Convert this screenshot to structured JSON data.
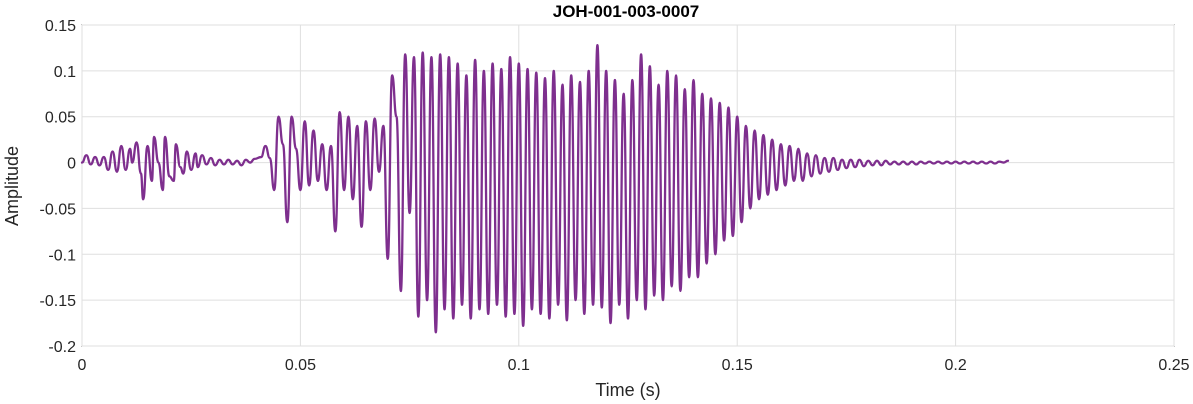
{
  "chart_data": {
    "type": "line",
    "title": "JOH-001-003-0007",
    "xlabel": "Time (s)",
    "ylabel": "Amplitude",
    "xlim": [
      0,
      0.25
    ],
    "ylim": [
      -0.2,
      0.15
    ],
    "xticks": [
      0,
      0.05,
      0.1,
      0.15,
      0.2,
      0.25
    ],
    "xtick_labels": [
      "0",
      "0.05",
      "0.1",
      "0.15",
      "0.2",
      "0.25"
    ],
    "yticks": [
      -0.2,
      -0.15,
      -0.1,
      -0.05,
      0,
      0.05,
      0.1,
      0.15
    ],
    "ytick_labels": [
      "-0.2",
      "-0.15",
      "-0.1",
      "-0.05",
      "0",
      "0.05",
      "0.1",
      "0.15"
    ],
    "grid": true,
    "series": [
      {
        "color": "#7e2f8e",
        "peaks": [
          [
            0.0,
            0.0
          ],
          [
            0.001,
            0.008
          ],
          [
            0.002,
            -0.002
          ],
          [
            0.003,
            0.006
          ],
          [
            0.004,
            -0.003
          ],
          [
            0.005,
            0.006
          ],
          [
            0.006,
            -0.008
          ],
          [
            0.007,
            0.012
          ],
          [
            0.008,
            -0.01
          ],
          [
            0.009,
            0.018
          ],
          [
            0.01,
            -0.008
          ],
          [
            0.011,
            0.015
          ],
          [
            0.0115,
            0.0
          ],
          [
            0.0125,
            0.022
          ],
          [
            0.0135,
            -0.012
          ],
          [
            0.014,
            -0.04
          ],
          [
            0.015,
            0.018
          ],
          [
            0.016,
            -0.02
          ],
          [
            0.0165,
            0.028
          ],
          [
            0.0175,
            0.0
          ],
          [
            0.0185,
            -0.03
          ],
          [
            0.019,
            0.028
          ],
          [
            0.02,
            -0.015
          ],
          [
            0.021,
            -0.02
          ],
          [
            0.0215,
            0.02
          ],
          [
            0.0225,
            -0.005
          ],
          [
            0.0232,
            -0.012
          ],
          [
            0.024,
            0.012
          ],
          [
            0.025,
            -0.008
          ],
          [
            0.026,
            0.01
          ],
          [
            0.0265,
            -0.005
          ],
          [
            0.0275,
            0.008
          ],
          [
            0.0285,
            -0.002
          ],
          [
            0.0295,
            0.005
          ],
          [
            0.0305,
            -0.003
          ],
          [
            0.0315,
            0.003
          ],
          [
            0.0325,
            -0.002
          ],
          [
            0.0335,
            0.003
          ],
          [
            0.0345,
            -0.002
          ],
          [
            0.0355,
            0.002
          ],
          [
            0.0365,
            -0.003
          ],
          [
            0.0375,
            0.003
          ],
          [
            0.0385,
            0.0
          ],
          [
            0.0395,
            0.004
          ],
          [
            0.041,
            0.006
          ],
          [
            0.042,
            0.018
          ],
          [
            0.043,
            0.005
          ],
          [
            0.044,
            -0.03
          ],
          [
            0.045,
            0.05
          ],
          [
            0.046,
            0.02
          ],
          [
            0.047,
            -0.065
          ],
          [
            0.048,
            0.05
          ],
          [
            0.049,
            0.015
          ],
          [
            0.05,
            -0.03
          ],
          [
            0.051,
            0.045
          ],
          [
            0.052,
            -0.025
          ],
          [
            0.053,
            0.035
          ],
          [
            0.054,
            -0.02
          ],
          [
            0.055,
            0.02
          ],
          [
            0.056,
            -0.03
          ],
          [
            0.057,
            0.018
          ],
          [
            0.058,
            -0.075
          ],
          [
            0.059,
            0.055
          ],
          [
            0.06,
            -0.03
          ],
          [
            0.061,
            0.05
          ],
          [
            0.062,
            -0.04
          ],
          [
            0.063,
            0.04
          ],
          [
            0.064,
            -0.07
          ],
          [
            0.065,
            0.045
          ],
          [
            0.066,
            -0.03
          ],
          [
            0.067,
            0.048
          ],
          [
            0.068,
            -0.01
          ],
          [
            0.069,
            0.04
          ],
          [
            0.07,
            -0.105
          ],
          [
            0.071,
            0.095
          ],
          [
            0.072,
            0.05
          ],
          [
            0.073,
            -0.14
          ],
          [
            0.074,
            0.118
          ],
          [
            0.075,
            -0.055
          ],
          [
            0.076,
            0.115
          ],
          [
            0.077,
            -0.168
          ],
          [
            0.078,
            0.12
          ],
          [
            0.079,
            -0.15
          ],
          [
            0.08,
            0.115
          ],
          [
            0.081,
            -0.185
          ],
          [
            0.082,
            0.118
          ],
          [
            0.083,
            -0.16
          ],
          [
            0.084,
            0.115
          ],
          [
            0.085,
            -0.17
          ],
          [
            0.086,
            0.108
          ],
          [
            0.087,
            -0.155
          ],
          [
            0.088,
            0.095
          ],
          [
            0.089,
            -0.17
          ],
          [
            0.09,
            0.112
          ],
          [
            0.091,
            -0.16
          ],
          [
            0.092,
            0.1
          ],
          [
            0.093,
            -0.165
          ],
          [
            0.094,
            0.108
          ],
          [
            0.095,
            -0.155
          ],
          [
            0.096,
            0.102
          ],
          [
            0.097,
            -0.168
          ],
          [
            0.098,
            0.115
          ],
          [
            0.099,
            -0.165
          ],
          [
            0.1,
            0.108
          ],
          [
            0.101,
            -0.178
          ],
          [
            0.102,
            0.102
          ],
          [
            0.103,
            -0.16
          ],
          [
            0.104,
            0.098
          ],
          [
            0.105,
            -0.165
          ],
          [
            0.106,
            0.092
          ],
          [
            0.107,
            -0.17
          ],
          [
            0.108,
            0.1
          ],
          [
            0.109,
            -0.155
          ],
          [
            0.11,
            0.085
          ],
          [
            0.111,
            -0.172
          ],
          [
            0.112,
            0.095
          ],
          [
            0.113,
            -0.15
          ],
          [
            0.114,
            0.088
          ],
          [
            0.115,
            -0.165
          ],
          [
            0.116,
            0.1
          ],
          [
            0.117,
            -0.155
          ],
          [
            0.118,
            0.128
          ],
          [
            0.119,
            -0.158
          ],
          [
            0.12,
            0.1
          ],
          [
            0.121,
            -0.175
          ],
          [
            0.122,
            0.09
          ],
          [
            0.123,
            -0.155
          ],
          [
            0.124,
            0.075
          ],
          [
            0.125,
            -0.17
          ],
          [
            0.126,
            0.09
          ],
          [
            0.127,
            -0.15
          ],
          [
            0.128,
            0.118
          ],
          [
            0.129,
            -0.16
          ],
          [
            0.13,
            0.105
          ],
          [
            0.131,
            -0.145
          ],
          [
            0.132,
            0.085
          ],
          [
            0.133,
            -0.15
          ],
          [
            0.134,
            0.1
          ],
          [
            0.135,
            -0.135
          ],
          [
            0.136,
            0.095
          ],
          [
            0.137,
            -0.14
          ],
          [
            0.138,
            0.08
          ],
          [
            0.139,
            -0.125
          ],
          [
            0.14,
            0.09
          ],
          [
            0.141,
            -0.125
          ],
          [
            0.142,
            0.075
          ],
          [
            0.143,
            -0.11
          ],
          [
            0.144,
            0.07
          ],
          [
            0.145,
            -0.1
          ],
          [
            0.146,
            0.065
          ],
          [
            0.147,
            -0.085
          ],
          [
            0.148,
            0.06
          ],
          [
            0.149,
            -0.08
          ],
          [
            0.15,
            0.05
          ],
          [
            0.151,
            -0.065
          ],
          [
            0.152,
            0.04
          ],
          [
            0.153,
            -0.05
          ],
          [
            0.154,
            0.035
          ],
          [
            0.155,
            -0.04
          ],
          [
            0.156,
            0.03
          ],
          [
            0.157,
            -0.035
          ],
          [
            0.158,
            0.025
          ],
          [
            0.159,
            -0.03
          ],
          [
            0.16,
            0.02
          ],
          [
            0.161,
            -0.025
          ],
          [
            0.162,
            0.018
          ],
          [
            0.163,
            -0.02
          ],
          [
            0.164,
            0.015
          ],
          [
            0.165,
            -0.02
          ],
          [
            0.166,
            0.01
          ],
          [
            0.167,
            -0.015
          ],
          [
            0.168,
            0.008
          ],
          [
            0.169,
            -0.012
          ],
          [
            0.17,
            0.005
          ],
          [
            0.171,
            -0.01
          ],
          [
            0.172,
            0.005
          ],
          [
            0.173,
            -0.008
          ],
          [
            0.174,
            0.003
          ],
          [
            0.175,
            -0.006
          ],
          [
            0.176,
            0.003
          ],
          [
            0.177,
            -0.005
          ],
          [
            0.178,
            0.003
          ],
          [
            0.179,
            -0.004
          ],
          [
            0.18,
            0.002
          ],
          [
            0.181,
            -0.003
          ],
          [
            0.182,
            0.002
          ],
          [
            0.183,
            -0.003
          ],
          [
            0.184,
            0.002
          ],
          [
            0.185,
            -0.002
          ],
          [
            0.186,
            0.001
          ],
          [
            0.187,
            -0.002
          ],
          [
            0.188,
            0.001
          ],
          [
            0.189,
            -0.002
          ],
          [
            0.19,
            0.001
          ],
          [
            0.191,
            -0.002
          ],
          [
            0.192,
            0.001
          ],
          [
            0.193,
            -0.001
          ],
          [
            0.194,
            0.001
          ],
          [
            0.195,
            -0.001
          ],
          [
            0.196,
            0.001
          ],
          [
            0.197,
            -0.001
          ],
          [
            0.198,
            0.001
          ],
          [
            0.199,
            -0.001
          ],
          [
            0.2,
            0.001
          ],
          [
            0.201,
            -0.001
          ],
          [
            0.202,
            0.001
          ],
          [
            0.203,
            -0.001
          ],
          [
            0.204,
            0.001
          ],
          [
            0.205,
            -0.001
          ],
          [
            0.206,
            0.001
          ],
          [
            0.207,
            -0.001
          ],
          [
            0.208,
            0.001
          ],
          [
            0.209,
            -0.001
          ],
          [
            0.21,
            0.001
          ],
          [
            0.211,
            0.0
          ],
          [
            0.212,
            0.002
          ]
        ]
      }
    ]
  }
}
